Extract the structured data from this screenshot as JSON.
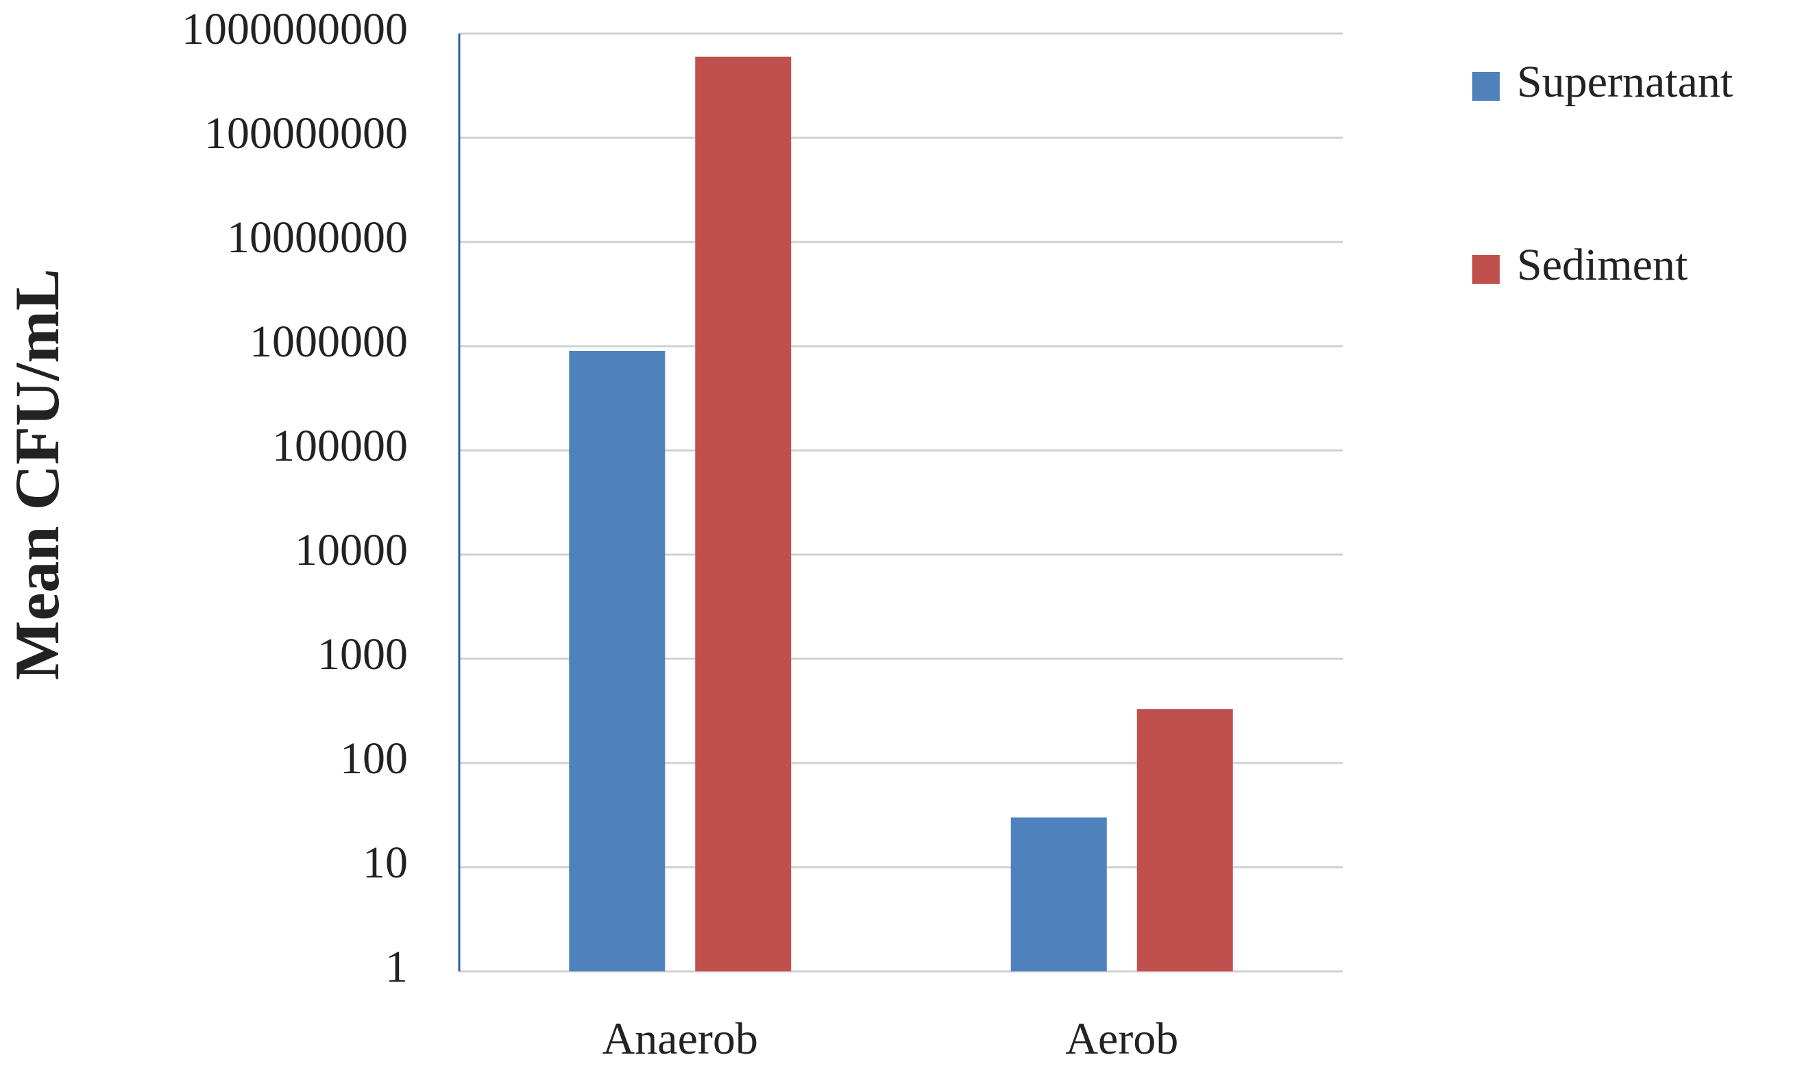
{
  "chart_data": {
    "type": "bar",
    "y_label": "Mean CFU/mL",
    "categories": [
      "Anaerob",
      "Aerob"
    ],
    "series": [
      {
        "name": "Supernatant",
        "color": "#4f81bd",
        "values": [
          900000,
          30
        ]
      },
      {
        "name": "Sediment",
        "color": "#c0504d",
        "values": [
          600000000,
          330
        ]
      }
    ],
    "log_scale": true,
    "ylim": [
      1,
      1000000000
    ],
    "yticks": [
      1,
      10,
      100,
      1000,
      10000,
      100000,
      1000000,
      10000000,
      100000000,
      1000000000
    ],
    "grid": true,
    "legend": "right"
  }
}
